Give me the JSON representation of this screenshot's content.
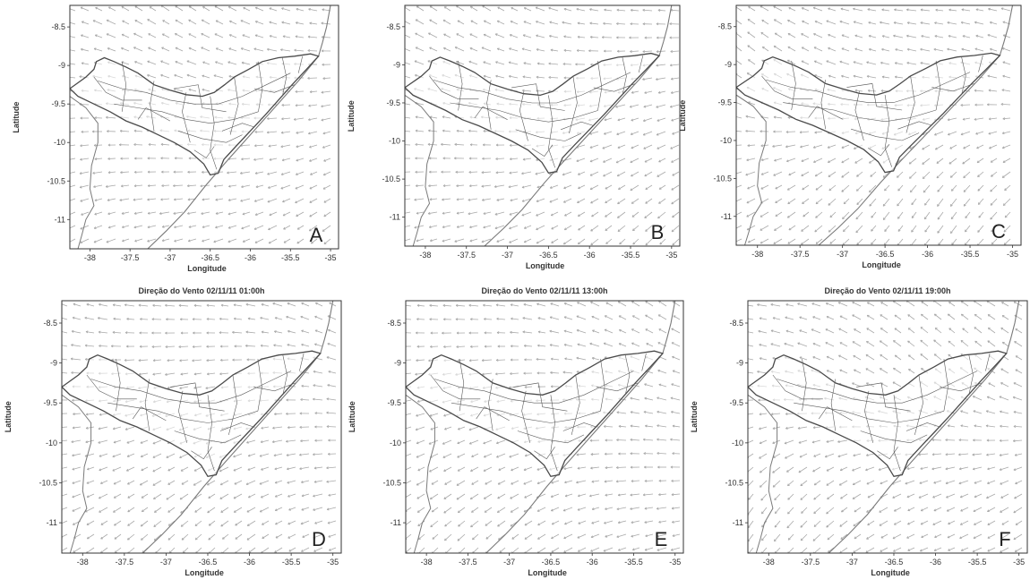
{
  "figure": {
    "panels": [
      {
        "id": "A",
        "letter": "A",
        "title": ""
      },
      {
        "id": "B",
        "letter": "B",
        "title": ""
      },
      {
        "id": "C",
        "letter": "C",
        "title": ""
      },
      {
        "id": "D",
        "letter": "D",
        "title": "Direção do Vento 02/11/11 01:00h"
      },
      {
        "id": "E",
        "letter": "E",
        "title": "Direção do Vento 02/11/11 13:00h"
      },
      {
        "id": "F",
        "letter": "F",
        "title": "Direção do Vento 02/11/11 19:00h"
      }
    ],
    "axes": {
      "xlabel": "Longitude",
      "ylabel": "Latitude",
      "xticks": [
        "-38",
        "-37.5",
        "-37",
        "-36.5",
        "-36",
        "-35.5",
        "-35"
      ],
      "yticks": [
        "-8.5",
        "-9",
        "-9.5",
        "-10",
        "-10.5",
        "-11"
      ]
    },
    "colors": {
      "vector": "#9a9a9a",
      "outline": "#4a4a4a",
      "frame": "#333333",
      "letter": "#222222"
    }
  }
}
